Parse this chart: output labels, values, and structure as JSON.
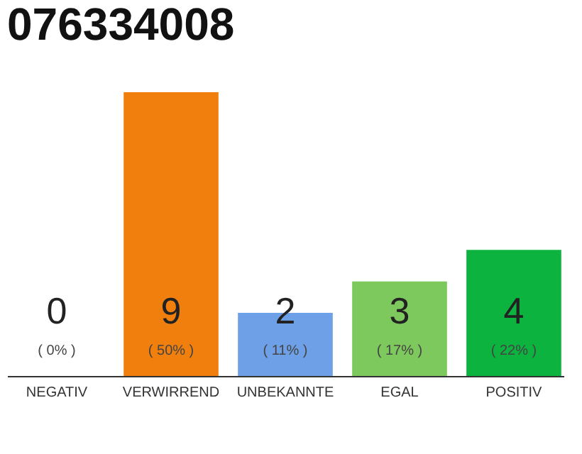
{
  "chart_data": {
    "type": "bar",
    "title": "076334008",
    "categories": [
      "NEGATIV",
      "VERWIRREND",
      "UNBEKANNTE",
      "EGAL",
      "POSITIV"
    ],
    "values": [
      0,
      9,
      2,
      3,
      4
    ],
    "colors": [
      "#888888",
      "#f07f0e",
      "#6ea0e8",
      "#7dc95e",
      "#0cb33f"
    ],
    "data_labels": true,
    "annotations": [
      "( 0% )",
      "( 50% )",
      "( 11% )",
      "( 17% )",
      "( 22% )"
    ],
    "grid": false
  }
}
